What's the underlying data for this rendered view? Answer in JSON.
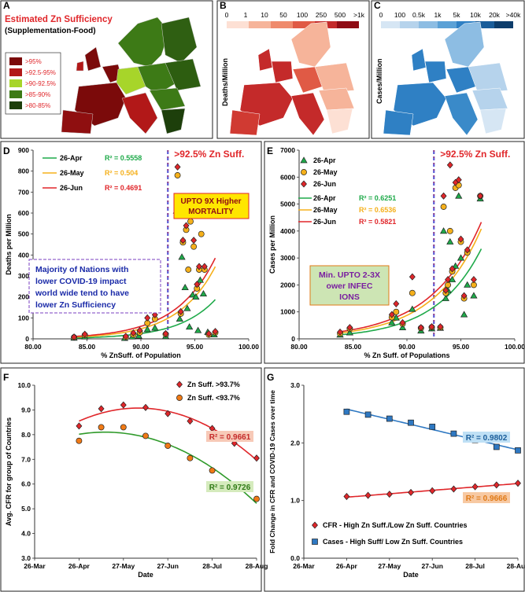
{
  "colors": {
    "zn": {
      ">95%": "#7b0a0a",
      ">92.5-95%": "#b21818",
      ">90-92.5%": "#a7d52a",
      ">85-90%": "#3d7a16",
      ">80-85%": "#1d3f0b"
    },
    "deaths_scale": [
      "#fde0d4",
      "#f6b49a",
      "#ef8a6c",
      "#e05a45",
      "#c42a2a",
      "#8f0b14"
    ],
    "cases_scale": [
      "#d6e6f4",
      "#b6d3ec",
      "#8dbde3",
      "#5ba1d6",
      "#2f80c4",
      "#1a5d9a",
      "#0d3d6b"
    ],
    "apr": "#1faa4a",
    "may": "#f5b01b",
    "jun": "#e0262a",
    "cfr_high": "#e0262a",
    "cfr_low": "#f07a16",
    "cases_fold": "#2e78c2"
  },
  "panels": {
    "A": {
      "letter": "A",
      "title": "Estimated Zn Sufficiency",
      "subtitle": "(Supplementation-Food)",
      "legend": [
        ">95%",
        ">92.5-95%",
        ">90-92.5%",
        ">85-90%",
        ">80-85%"
      ]
    },
    "B": {
      "letter": "B",
      "scale_labels": [
        "0",
        "1",
        "10",
        "50",
        "100",
        "250",
        "500",
        ">1k"
      ],
      "side_label": "Deaths/Million"
    },
    "C": {
      "letter": "C",
      "scale_labels": [
        "0",
        "100",
        "0.5k",
        "1k",
        "5k",
        "10k",
        "20k",
        ">40k"
      ],
      "side_label": "Cases/Million"
    }
  },
  "chart_data": [
    {
      "panel": "D",
      "type": "scatter",
      "xlabel": "% ZnSuff. of Population",
      "ylabel": "Deaths per Million",
      "xlim": [
        80,
        100
      ],
      "ylim": [
        0,
        900
      ],
      "xticks": [
        "80.00",
        "85.00",
        "90.00",
        "95.00",
        "100.00"
      ],
      "yticks": [
        "0",
        "100",
        "200",
        "300",
        "400",
        "500",
        "600",
        "700",
        "800",
        "900"
      ],
      "vline": {
        "x": 92.5,
        "label": ">92.5% Zn Suff."
      },
      "annotations": [
        "UPTO 9X Higher MORTALITY",
        "Majority of Nations with lower COVID-19 impact world wide tend to have lower Zn Sufficiency"
      ],
      "series": [
        {
          "name": "26-Apr",
          "r2": "R² = 0.5558",
          "points": [
            [
              83.8,
              4
            ],
            [
              84.8,
              10
            ],
            [
              88.5,
              3
            ],
            [
              89.2,
              10
            ],
            [
              89.8,
              14
            ],
            [
              90.6,
              45
            ],
            [
              91.3,
              52
            ],
            [
              92.3,
              12
            ],
            [
              93.3,
              610
            ],
            [
              93.6,
              95
            ],
            [
              93.8,
              390
            ],
            [
              94.1,
              245
            ],
            [
              94.3,
              145
            ],
            [
              94.5,
              57
            ],
            [
              94.8,
              210
            ],
            [
              95.1,
              200
            ],
            [
              95.3,
              40
            ],
            [
              95.5,
              280
            ],
            [
              95.8,
              215
            ],
            [
              96.2,
              32
            ],
            [
              96.8,
              20
            ]
          ]
        },
        {
          "name": "26-May",
          "r2": "R² = 0.504",
          "points": [
            [
              83.8,
              7
            ],
            [
              84.8,
              18
            ],
            [
              88.6,
              8
            ],
            [
              89.3,
              20
            ],
            [
              89.9,
              30
            ],
            [
              90.6,
              75
            ],
            [
              91.3,
              95
            ],
            [
              92.3,
              22
            ],
            [
              93.4,
              780
            ],
            [
              93.7,
              120
            ],
            [
              93.9,
              460
            ],
            [
              94.2,
              520
            ],
            [
              94.4,
              330
            ],
            [
              94.6,
              560
            ],
            [
              94.9,
              440
            ],
            [
              95.2,
              240
            ],
            [
              95.4,
              330
            ],
            [
              95.6,
              500
            ],
            [
              95.9,
              330
            ],
            [
              96.3,
              20
            ],
            [
              96.9,
              30
            ]
          ]
        },
        {
          "name": "26-Jun",
          "r2": "R² = 0.4691",
          "points": [
            [
              83.8,
              9
            ],
            [
              84.8,
              22
            ],
            [
              88.6,
              12
            ],
            [
              89.3,
              28
            ],
            [
              89.9,
              40
            ],
            [
              90.6,
              100
            ],
            [
              91.3,
              115
            ],
            [
              92.3,
              25
            ],
            [
              93.4,
              820
            ],
            [
              93.7,
              130
            ],
            [
              93.9,
              470
            ],
            [
              94.2,
              540
            ],
            [
              94.4,
              600
            ],
            [
              94.6,
              610
            ],
            [
              94.9,
              470
            ],
            [
              95.2,
              260
            ],
            [
              95.4,
              345
            ],
            [
              95.6,
              600
            ],
            [
              95.9,
              345
            ],
            [
              96.3,
              25
            ],
            [
              96.9,
              35
            ]
          ]
        }
      ]
    },
    {
      "panel": "E",
      "type": "scatter",
      "xlabel": "% Zn Suff. of Populations",
      "ylabel": "Cases per Million",
      "xlim": [
        80,
        100
      ],
      "ylim": [
        0,
        7000
      ],
      "xticks": [
        "80.00",
        "85.00",
        "90.00",
        "95.00",
        "100.00"
      ],
      "yticks": [
        "0",
        "1000",
        "2000",
        "3000",
        "4000",
        "5000",
        "6000",
        "7000"
      ],
      "vline": {
        "x": 92.5,
        "label": ">92.5% Zn Suff."
      },
      "annotations": [
        "Min. UPTO 2-3X Lower INFECTIONS"
      ],
      "series": [
        {
          "name": "26-Apr",
          "r2": "R² = 0.6251",
          "points": [
            [
              83.8,
              150
            ],
            [
              84.7,
              230
            ],
            [
              88.6,
              600
            ],
            [
              89.0,
              780
            ],
            [
              89.6,
              420
            ],
            [
              90.5,
              1100
            ],
            [
              91.3,
              300
            ],
            [
              92.3,
              380
            ],
            [
              93.1,
              400
            ],
            [
              93.4,
              4000
            ],
            [
              93.6,
              1500
            ],
            [
              93.8,
              1800
            ],
            [
              94.0,
              3600
            ],
            [
              94.2,
              2200
            ],
            [
              94.5,
              2700
            ],
            [
              94.8,
              5300
            ],
            [
              95.0,
              3000
            ],
            [
              95.3,
              900
            ],
            [
              95.6,
              2000
            ],
            [
              96.2,
              1600
            ],
            [
              96.8,
              5200
            ]
          ]
        },
        {
          "name": "26-May",
          "r2": "R² = 0.6536",
          "points": [
            [
              83.8,
              200
            ],
            [
              84.7,
              380
            ],
            [
              88.6,
              800
            ],
            [
              89.0,
              1000
            ],
            [
              89.6,
              560
            ],
            [
              90.5,
              1700
            ],
            [
              91.3,
              400
            ],
            [
              92.3,
              430
            ],
            [
              93.1,
              420
            ],
            [
              93.4,
              4900
            ],
            [
              93.6,
              1700
            ],
            [
              93.8,
              2000
            ],
            [
              94.0,
              4000
            ],
            [
              94.2,
              2500
            ],
            [
              94.5,
              5600
            ],
            [
              94.8,
              5700
            ],
            [
              95.0,
              3600
            ],
            [
              95.3,
              1500
            ],
            [
              95.6,
              3200
            ],
            [
              96.2,
              2000
            ],
            [
              96.8,
              5300
            ]
          ]
        },
        {
          "name": "26-Jun",
          "r2": "R² = 0.5821",
          "points": [
            [
              83.8,
              250
            ],
            [
              84.7,
              420
            ],
            [
              88.6,
              900
            ],
            [
              89.0,
              1300
            ],
            [
              89.6,
              600
            ],
            [
              90.5,
              2300
            ],
            [
              91.3,
              420
            ],
            [
              92.3,
              450
            ],
            [
              93.1,
              450
            ],
            [
              93.4,
              5300
            ],
            [
              93.6,
              1800
            ],
            [
              93.8,
              2200
            ],
            [
              94.0,
              6450
            ],
            [
              94.2,
              2600
            ],
            [
              94.5,
              5800
            ],
            [
              94.8,
              5900
            ],
            [
              95.0,
              3700
            ],
            [
              95.3,
              1600
            ],
            [
              95.6,
              3300
            ],
            [
              96.2,
              2200
            ],
            [
              96.8,
              5300
            ]
          ]
        }
      ]
    },
    {
      "panel": "F",
      "type": "line",
      "xlabel": "Date",
      "ylabel": "Avg. CFR for group of Countries",
      "ylim": [
        3,
        10
      ],
      "yticks": [
        "3.0",
        "4.0",
        "5.0",
        "6.0",
        "7.0",
        "8.0",
        "9.0",
        "10.0"
      ],
      "xticks": [
        "26-Mar",
        "26-Apr",
        "27-May",
        "27-Jun",
        "28-Jul",
        "28-Aug"
      ],
      "xlim": [
        0,
        5
      ],
      "series": [
        {
          "name": "Zn Suff. >93.7%",
          "r2": "R² = 0.9661",
          "x": [
            1,
            1.5,
            2,
            2.5,
            3,
            3.5,
            4,
            4.5,
            5
          ],
          "values": [
            8.35,
            9.05,
            9.2,
            9.1,
            8.85,
            8.55,
            8.25,
            7.65,
            7.05
          ]
        },
        {
          "name": "Zn Suff. <93.7%",
          "r2": "R² = 0.9726",
          "x": [
            1,
            1.5,
            2,
            2.5,
            3,
            3.5,
            4,
            4.5,
            5
          ],
          "values": [
            7.75,
            8.3,
            8.3,
            7.95,
            7.55,
            7.05,
            6.55,
            5.9,
            5.4
          ]
        }
      ]
    },
    {
      "panel": "G",
      "type": "line",
      "xlabel": "Date",
      "ylabel": "Fold Change in CFR and COVID-19 Cases over time",
      "ylim": [
        0,
        3
      ],
      "yticks": [
        "0.0",
        "1.0",
        "2.0",
        "3.0"
      ],
      "xticks": [
        "26-Mar",
        "26-Apr",
        "27-May",
        "27-Jun",
        "28-Jul",
        "28-Aug"
      ],
      "xlim": [
        0,
        5
      ],
      "series": [
        {
          "name": "CFR - High Zn Suff./Low Zn Suff. Countries",
          "r2": "R² = 0.9666",
          "x": [
            1,
            1.5,
            2,
            2.5,
            3,
            3.5,
            4,
            4.5,
            5
          ],
          "values": [
            1.07,
            1.09,
            1.11,
            1.14,
            1.17,
            1.2,
            1.24,
            1.27,
            1.3
          ]
        },
        {
          "name": "Cases - High Suff/ Low Zn Suff. Countries",
          "r2": "R² = 0.9802",
          "x": [
            1,
            1.5,
            2,
            2.5,
            3,
            3.5,
            4,
            4.5,
            5
          ],
          "values": [
            2.54,
            2.49,
            2.42,
            2.35,
            2.28,
            2.16,
            2.05,
            1.93,
            1.87
          ]
        }
      ]
    }
  ]
}
